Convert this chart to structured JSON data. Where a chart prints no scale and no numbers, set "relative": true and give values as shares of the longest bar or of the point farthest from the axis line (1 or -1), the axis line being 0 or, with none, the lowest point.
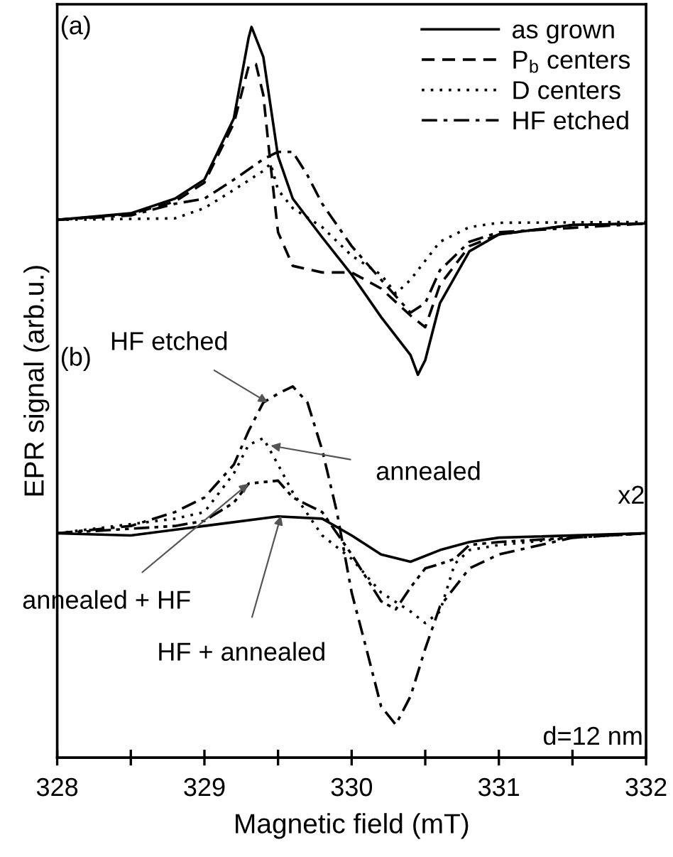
{
  "chart_data": {
    "type": "line",
    "relative": true,
    "xlabel": "Magnetic field (mT)",
    "ylabel": "EPR signal (arb.u.)",
    "xlim": [
      328,
      332
    ],
    "xticks": [
      328,
      {
        "value": 328.5,
        "label": null
      },
      329,
      {
        "value": 329.5,
        "label": null
      },
      330,
      {
        "value": 330.5,
        "label": null
      },
      331,
      {
        "value": 331.5,
        "label": null
      },
      332
    ],
    "legend": "top right",
    "grid": false,
    "marker": "none",
    "series": [
      {
        "name": "as grown",
        "color": "#000000",
        "line_style": "solid",
        "x": [
          328.0,
          328.5,
          328.8,
          329.0,
          329.2,
          329.3,
          329.32,
          329.4,
          329.5,
          329.6,
          329.8,
          330.0,
          330.2,
          330.4,
          330.45,
          330.5,
          330.6,
          330.8,
          331.0,
          331.5,
          332.0
        ],
        "values": [
          0.736,
          0.745,
          0.765,
          0.791,
          0.875,
          0.985,
          1.0,
          0.959,
          0.823,
          0.765,
          0.712,
          0.661,
          0.603,
          0.551,
          0.524,
          0.544,
          0.622,
          0.693,
          0.716,
          0.729,
          0.731
        ]
      },
      {
        "name": "P$_{b}$ centers",
        "color": "#000000",
        "line_style": "dashed",
        "x": [
          328.0,
          328.5,
          328.8,
          329.0,
          329.2,
          329.3,
          329.35,
          329.4,
          329.45,
          329.5,
          329.6,
          329.8,
          330.0,
          330.2,
          330.4,
          330.5,
          330.6,
          330.8,
          331.0,
          331.5,
          332.0
        ],
        "values": [
          0.736,
          0.744,
          0.761,
          0.787,
          0.868,
          0.946,
          0.949,
          0.907,
          0.81,
          0.719,
          0.673,
          0.664,
          0.664,
          0.642,
          0.605,
          0.589,
          0.647,
          0.7,
          0.716,
          0.729,
          0.731
        ]
      },
      {
        "name": "D centers",
        "color": "#000000",
        "line_style": "dotted",
        "x": [
          328.0,
          328.8,
          329.0,
          329.2,
          329.4,
          329.45,
          329.5,
          329.6,
          329.8,
          330.0,
          330.2,
          330.3,
          330.4,
          330.6,
          330.8,
          331.0,
          332.0
        ],
        "values": [
          0.736,
          0.738,
          0.752,
          0.777,
          0.803,
          0.813,
          0.777,
          0.752,
          0.726,
          0.687,
          0.661,
          0.635,
          0.654,
          0.706,
          0.726,
          0.732,
          0.733
        ]
      },
      {
        "name": "HF etched",
        "color": "#000000",
        "line_style": "dashdot",
        "x": [
          328.0,
          328.5,
          328.8,
          329.0,
          329.2,
          329.4,
          329.5,
          329.6,
          329.7,
          329.8,
          330.0,
          330.2,
          330.4,
          330.5,
          330.6,
          330.8,
          331.0,
          332.0
        ],
        "values": [
          0.736,
          0.742,
          0.758,
          0.765,
          0.791,
          0.819,
          0.829,
          0.829,
          0.797,
          0.758,
          0.7,
          0.654,
          0.609,
          0.622,
          0.667,
          0.706,
          0.719,
          0.731
        ]
      },
      {
        "color": "#000000",
        "line_style": "dashdot",
        "x": [
          328.0,
          328.5,
          328.8,
          329.0,
          329.2,
          329.3,
          329.4,
          329.5,
          329.6,
          329.7,
          329.8,
          329.9,
          330.0,
          330.1,
          330.2,
          330.3,
          330.4,
          330.5,
          330.6,
          330.8,
          331.0,
          331.5,
          332.0
        ],
        "values": [
          0.307,
          0.317,
          0.336,
          0.356,
          0.401,
          0.447,
          0.486,
          0.498,
          0.508,
          0.486,
          0.421,
          0.336,
          0.226,
          0.149,
          0.07,
          0.045,
          0.084,
          0.149,
          0.207,
          0.259,
          0.278,
          0.301,
          0.307
        ]
      },
      {
        "color": "#000000",
        "line_style": "dotted",
        "x": [
          328.0,
          328.8,
          329.0,
          329.2,
          329.3,
          329.4,
          329.5,
          329.6,
          329.8,
          330.0,
          330.2,
          330.4,
          330.5,
          330.6,
          330.7,
          330.8,
          331.0,
          331.5,
          332.0
        ],
        "values": [
          0.307,
          0.327,
          0.336,
          0.389,
          0.428,
          0.437,
          0.401,
          0.363,
          0.304,
          0.272,
          0.226,
          0.2,
          0.184,
          0.2,
          0.265,
          0.284,
          0.291,
          0.301,
          0.307
        ]
      },
      {
        "color": "#000000",
        "line_style": "dashdotdot",
        "x": [
          328.0,
          328.8,
          329.0,
          329.2,
          329.3,
          329.5,
          329.6,
          329.8,
          330.0,
          330.2,
          330.3,
          330.4,
          330.5,
          330.6,
          330.7,
          330.8,
          331.0,
          332.0
        ],
        "values": [
          0.307,
          0.317,
          0.324,
          0.349,
          0.375,
          0.379,
          0.356,
          0.336,
          0.278,
          0.214,
          0.203,
          0.233,
          0.259,
          0.265,
          0.272,
          0.291,
          0.295,
          0.307
        ]
      },
      {
        "color": "#000000",
        "line_style": "solid",
        "x": [
          328.0,
          328.5,
          329.0,
          329.5,
          329.8,
          330.0,
          330.2,
          330.4,
          330.6,
          330.8,
          331.0,
          332.0
        ],
        "values": [
          0.307,
          0.304,
          0.317,
          0.33,
          0.327,
          0.304,
          0.278,
          0.268,
          0.284,
          0.295,
          0.301,
          0.307
        ]
      }
    ],
    "annotations": [
      "(a)",
      "(b)",
      {
        "text": "HF etched",
        "x": 329.43,
        "y": 0.486
      },
      {
        "text": "annealed",
        "x": 329.45,
        "y": 0.427
      },
      {
        "text": "annealed + HF",
        "x": 329.3,
        "y": 0.375
      },
      {
        "text": "HF + annealed",
        "x": 329.52,
        "y": 0.331
      },
      "x2",
      "d=12 nm"
    ]
  }
}
